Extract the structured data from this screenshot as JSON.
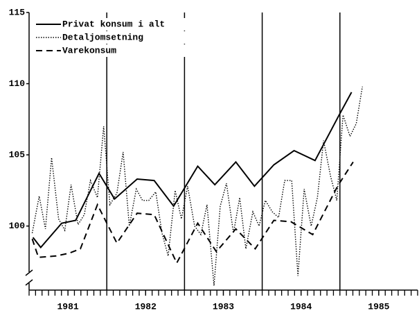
{
  "chart_data": {
    "type": "line",
    "xlim": [
      1981.0,
      1986.0
    ],
    "xticks": [
      {
        "value": 1981.5,
        "label": "1981"
      },
      {
        "value": 1982.5,
        "label": "1982"
      },
      {
        "value": 1983.5,
        "label": "1983"
      },
      {
        "value": 1984.5,
        "label": "1984"
      },
      {
        "value": 1985.5,
        "label": "1985"
      }
    ],
    "ylim": [
      95.5,
      115
    ],
    "yticks": [
      100,
      105,
      110,
      115
    ],
    "vlines": [
      1982,
      1983,
      1984,
      1985
    ],
    "legend": "upper left",
    "series": [
      {
        "name": "Privat konsum i alt",
        "style": "solid",
        "color": "#000000",
        "x": [
          1981.05,
          1981.15,
          1981.42,
          1981.6,
          1981.9,
          1982.1,
          1982.39,
          1982.61,
          1982.86,
          1983.17,
          1983.39,
          1983.66,
          1983.9,
          1984.15,
          1984.41,
          1984.68,
          1984.99,
          1985.15
        ],
        "values": [
          99.2,
          98.5,
          100.2,
          100.4,
          103.7,
          101.9,
          103.3,
          103.2,
          101.4,
          104.2,
          102.9,
          104.5,
          102.8,
          104.3,
          105.3,
          104.6,
          107.8,
          109.4
        ]
      },
      {
        "name": "Detaljomsetning",
        "style": "dotted",
        "color": "#000000",
        "x": [
          1981.04,
          1981.13,
          1981.21,
          1981.29,
          1981.38,
          1981.46,
          1981.54,
          1981.63,
          1981.71,
          1981.79,
          1981.88,
          1981.96,
          1982.04,
          1982.13,
          1982.21,
          1982.29,
          1982.38,
          1982.46,
          1982.54,
          1982.63,
          1982.71,
          1982.79,
          1982.88,
          1982.96,
          1983.04,
          1983.13,
          1983.21,
          1983.29,
          1983.38,
          1983.46,
          1983.54,
          1983.63,
          1983.71,
          1983.79,
          1983.88,
          1983.96,
          1984.04,
          1984.13,
          1984.21,
          1984.29,
          1984.38,
          1984.46,
          1984.54,
          1984.63,
          1984.71,
          1984.79,
          1984.88,
          1984.96,
          1985.04,
          1985.13,
          1985.21,
          1985.29
        ],
        "values": [
          99.5,
          102.1,
          99.8,
          104.8,
          100.5,
          99.7,
          102.9,
          100.1,
          100.8,
          103.2,
          102.0,
          107.0,
          101.5,
          102.3,
          105.2,
          100.0,
          102.6,
          101.8,
          101.8,
          102.4,
          99.5,
          97.9,
          102.5,
          100.5,
          102.8,
          100.0,
          99.4,
          101.5,
          95.8,
          101.4,
          103.0,
          99.5,
          102.0,
          98.4,
          101.0,
          100.0,
          101.8,
          101.0,
          100.6,
          103.2,
          103.2,
          96.5,
          102.6,
          100.0,
          102.0,
          106.0,
          103.5,
          101.8,
          107.8,
          106.3,
          107.2,
          109.8
        ]
      },
      {
        "name": "Varekonsum",
        "style": "dashed",
        "color": "#000000",
        "x": [
          1981.04,
          1981.12,
          1981.35,
          1981.52,
          1981.66,
          1981.88,
          1982.13,
          1982.39,
          1982.61,
          1982.9,
          1983.17,
          1983.41,
          1983.66,
          1983.91,
          1984.15,
          1984.37,
          1984.65,
          1984.97,
          1985.17
        ],
        "values": [
          99.1,
          97.8,
          97.9,
          98.1,
          98.4,
          101.5,
          98.8,
          100.9,
          100.8,
          97.4,
          100.2,
          98.2,
          99.8,
          98.4,
          100.4,
          100.3,
          99.4,
          102.8,
          104.5
        ]
      }
    ]
  }
}
